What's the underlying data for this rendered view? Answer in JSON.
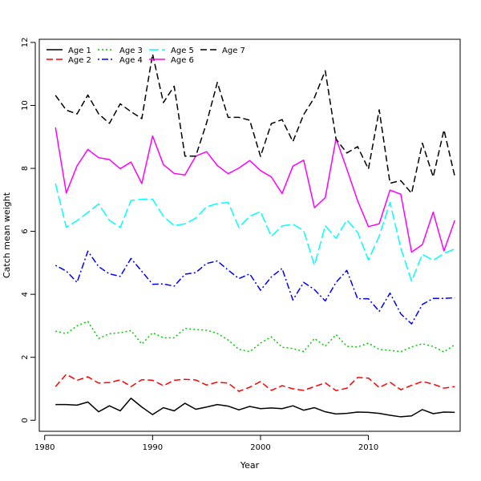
{
  "chart_data": {
    "type": "line",
    "title": "",
    "xlabel": "Year",
    "ylabel": "Catch mean weight",
    "xlim": [
      1979.5,
      2018.5
    ],
    "ylim": [
      -0.35,
      12.1
    ],
    "x_ticks": [
      1980,
      1990,
      2000,
      2010
    ],
    "y_ticks": [
      0,
      2,
      4,
      6,
      8,
      10,
      12
    ],
    "grid": false,
    "legend_position": "top-left",
    "x": [
      1981,
      1982,
      1983,
      1984,
      1985,
      1986,
      1987,
      1988,
      1989,
      1990,
      1991,
      1992,
      1993,
      1994,
      1995,
      1996,
      1997,
      1998,
      1999,
      2000,
      2001,
      2002,
      2003,
      2004,
      2005,
      2006,
      2007,
      2008,
      2009,
      2010,
      2011,
      2012,
      2013,
      2014,
      2015,
      2016,
      2017,
      2018
    ],
    "series": [
      {
        "name": "Age 1",
        "color": "#000000",
        "dash": "solid",
        "values": [
          0.5,
          0.5,
          0.48,
          0.58,
          0.27,
          0.46,
          0.3,
          0.7,
          0.42,
          0.18,
          0.4,
          0.3,
          0.54,
          0.35,
          0.42,
          0.5,
          0.45,
          0.33,
          0.44,
          0.37,
          0.39,
          0.37,
          0.46,
          0.32,
          0.4,
          0.27,
          0.2,
          0.22,
          0.26,
          0.25,
          0.22,
          0.16,
          0.11,
          0.14,
          0.34,
          0.21,
          0.26,
          0.25
        ]
      },
      {
        "name": "Age 2",
        "color": "#ff0000",
        "dash": "dashed",
        "values": [
          1.07,
          1.46,
          1.27,
          1.38,
          1.18,
          1.2,
          1.28,
          1.07,
          1.29,
          1.27,
          1.1,
          1.27,
          1.3,
          1.28,
          1.12,
          1.21,
          1.18,
          0.92,
          1.05,
          1.23,
          0.95,
          1.1,
          1.0,
          0.95,
          1.07,
          1.19,
          0.94,
          1.02,
          1.36,
          1.34,
          1.04,
          1.21,
          0.97,
          1.11,
          1.23,
          1.15,
          1.02,
          1.07
        ]
      },
      {
        "name": "Age 3",
        "color": "#00cd00",
        "dash": "dotted",
        "values": [
          2.83,
          2.75,
          3.0,
          3.14,
          2.6,
          2.75,
          2.78,
          2.85,
          2.42,
          2.78,
          2.62,
          2.62,
          2.92,
          2.88,
          2.86,
          2.76,
          2.55,
          2.25,
          2.18,
          2.45,
          2.65,
          2.32,
          2.28,
          2.18,
          2.6,
          2.35,
          2.72,
          2.35,
          2.33,
          2.45,
          2.25,
          2.22,
          2.18,
          2.33,
          2.43,
          2.34,
          2.17,
          2.4
        ]
      },
      {
        "name": "Age 4",
        "color": "#0000ff",
        "dash": "dotdash",
        "values": [
          4.92,
          4.74,
          4.38,
          5.37,
          4.88,
          4.65,
          4.57,
          5.14,
          4.73,
          4.32,
          4.33,
          4.26,
          4.64,
          4.69,
          4.98,
          5.06,
          4.77,
          4.5,
          4.65,
          4.13,
          4.55,
          4.82,
          3.82,
          4.38,
          4.15,
          3.79,
          4.38,
          4.76,
          3.86,
          3.86,
          3.46,
          4.04,
          3.38,
          3.06,
          3.68,
          3.87,
          3.87,
          3.89
        ]
      },
      {
        "name": "Age 5",
        "color": "#00ffff",
        "dash": "longdash",
        "values": [
          7.52,
          6.13,
          6.34,
          6.6,
          6.87,
          6.35,
          6.12,
          6.98,
          7.02,
          7.02,
          6.48,
          6.18,
          6.24,
          6.42,
          6.78,
          6.88,
          6.92,
          6.12,
          6.48,
          6.63,
          5.84,
          6.17,
          6.23,
          6.02,
          4.92,
          6.18,
          5.78,
          6.36,
          5.97,
          5.09,
          5.85,
          6.92,
          5.47,
          4.42,
          5.27,
          5.08,
          5.3,
          5.44
        ]
      },
      {
        "name": "Age 6",
        "color": "#ff00ff",
        "dash": "solid",
        "values": [
          9.3,
          7.22,
          8.08,
          8.6,
          8.34,
          8.28,
          7.99,
          8.2,
          7.52,
          9.03,
          8.12,
          7.84,
          7.79,
          8.39,
          8.53,
          8.09,
          7.83,
          8.01,
          8.25,
          7.93,
          7.73,
          7.2,
          8.07,
          8.26,
          6.75,
          7.07,
          8.95,
          7.98,
          6.97,
          6.15,
          6.24,
          7.31,
          7.18,
          5.34,
          5.58,
          6.61,
          5.38,
          6.35
        ]
      },
      {
        "name": "Age 7",
        "color": "#000000",
        "dash": "dashed",
        "values": [
          10.32,
          9.85,
          9.73,
          10.33,
          9.73,
          9.43,
          10.05,
          9.8,
          9.58,
          11.63,
          10.09,
          10.61,
          8.39,
          8.39,
          9.44,
          10.73,
          9.62,
          9.62,
          9.53,
          8.38,
          9.42,
          9.55,
          8.85,
          9.71,
          10.25,
          11.1,
          8.93,
          8.49,
          8.69,
          7.98,
          9.86,
          7.53,
          7.61,
          7.21,
          8.8,
          7.73,
          9.22,
          7.75
        ]
      }
    ]
  }
}
